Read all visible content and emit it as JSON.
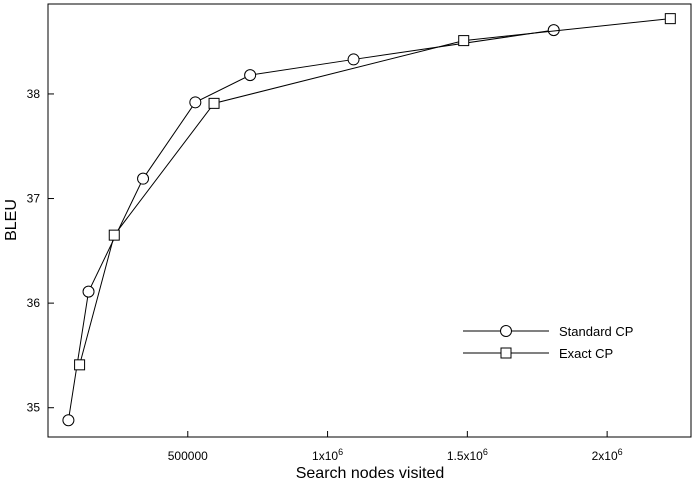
{
  "chart_data": {
    "type": "line",
    "xlabel": "Search nodes visited",
    "ylabel": "BLEU",
    "xlim": [
      0,
      2300000
    ],
    "ylim": [
      34.72,
      38.86
    ],
    "x_ticks": [
      {
        "value": 500000,
        "label": "500000"
      },
      {
        "value": 1000000,
        "label": "1x10",
        "sup": "6"
      },
      {
        "value": 1500000,
        "label": "1.5x10",
        "sup": "6"
      },
      {
        "value": 2000000,
        "label": "2x10",
        "sup": "6"
      }
    ],
    "y_ticks": [
      {
        "value": 35,
        "label": "35"
      },
      {
        "value": 36,
        "label": "36"
      },
      {
        "value": 37,
        "label": "37"
      },
      {
        "value": 38,
        "label": "38"
      }
    ],
    "legend_position": "bottom-right",
    "grid": false,
    "series": [
      {
        "name": "Standard CP",
        "marker": "circle",
        "points": [
          {
            "x": 73000,
            "y": 34.88
          },
          {
            "x": 145000,
            "y": 36.11
          },
          {
            "x": 340000,
            "y": 37.19
          },
          {
            "x": 527000,
            "y": 37.92
          },
          {
            "x": 723000,
            "y": 38.18
          },
          {
            "x": 1093000,
            "y": 38.33
          },
          {
            "x": 1809000,
            "y": 38.61
          }
        ]
      },
      {
        "name": "Exact CP",
        "marker": "square",
        "points": [
          {
            "x": 113000,
            "y": 35.41
          },
          {
            "x": 237000,
            "y": 36.65
          },
          {
            "x": 594000,
            "y": 37.91
          },
          {
            "x": 1487000,
            "y": 38.51
          },
          {
            "x": 2226000,
            "y": 38.72
          }
        ]
      }
    ]
  }
}
